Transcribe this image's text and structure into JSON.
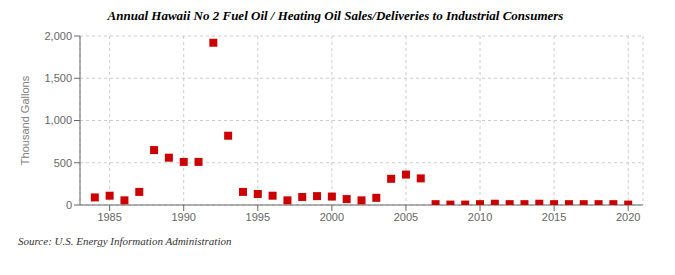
{
  "chart_data": {
    "type": "scatter",
    "title": "Annual Hawaii No 2 Fuel Oil / Heating Oil Sales/Deliveries to Industrial Consumers",
    "ylabel": "Thousand Gallons",
    "source": "Source: U.S. Energy Information Administration",
    "x": [
      1984,
      1985,
      1986,
      1987,
      1988,
      1989,
      1990,
      1991,
      1992,
      1993,
      1994,
      1995,
      1996,
      1997,
      1998,
      1999,
      2000,
      2001,
      2002,
      2003,
      2004,
      2005,
      2006,
      2007,
      2008,
      2009,
      2010,
      2011,
      2012,
      2013,
      2014,
      2015,
      2016,
      2017,
      2018,
      2019,
      2020
    ],
    "values": [
      90,
      110,
      55,
      155,
      650,
      560,
      510,
      510,
      1920,
      820,
      155,
      130,
      110,
      55,
      95,
      105,
      100,
      70,
      55,
      85,
      310,
      360,
      315,
      10,
      5,
      5,
      10,
      15,
      10,
      10,
      15,
      10,
      10,
      10,
      10,
      10,
      5
    ],
    "color": "#cc0000",
    "marker": "square",
    "xlim": [
      1983,
      2021
    ],
    "ylim": [
      0,
      2000
    ],
    "xticks": [
      1985,
      1990,
      1995,
      2000,
      2005,
      2010,
      2015,
      2020
    ],
    "yticks": [
      0,
      500,
      {
        "value": 1000,
        "label": "1,000"
      },
      {
        "value": 1500,
        "label": "1,500"
      },
      {
        "value": 2000,
        "label": "2,000"
      }
    ],
    "grid": true
  }
}
